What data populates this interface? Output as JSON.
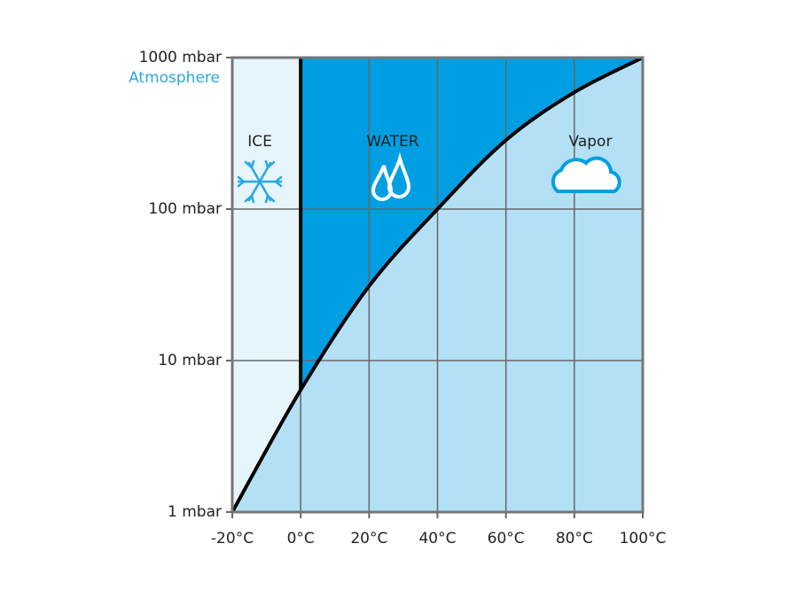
{
  "chart_data": {
    "type": "area",
    "x": [
      -20,
      0,
      20,
      40,
      60,
      80,
      100
    ],
    "values": [
      1,
      6.4,
      31,
      100,
      285,
      590,
      1000
    ],
    "line_color": "#000000",
    "colors": {
      "ice": "#e6f4fc",
      "water": "#009fe3",
      "vapor": "#b3e0f5"
    },
    "xlim": [
      -20,
      100
    ],
    "xticks": [
      {
        "value": -20,
        "label": "-20°C"
      },
      {
        "value": 0,
        "label": "0°C"
      },
      {
        "value": 20,
        "label": "20°C"
      },
      {
        "value": 40,
        "label": "40°C"
      },
      {
        "value": 60,
        "label": "60°C"
      },
      {
        "value": 80,
        "label": "80°C"
      },
      {
        "value": 100,
        "label": "100°C"
      }
    ],
    "ylim": [
      1,
      1000
    ],
    "yticks": [
      {
        "value": 1,
        "label": "1 mbar"
      },
      {
        "value": 10,
        "label": "10 mbar"
      },
      {
        "value": 100,
        "label": "100 mbar"
      },
      {
        "value": 1000,
        "label": "1000 mbar"
      }
    ],
    "ylog": true,
    "grid": true,
    "annotations": [
      "Atmosphere",
      "ICE",
      "WATER",
      "Vapor"
    ]
  }
}
